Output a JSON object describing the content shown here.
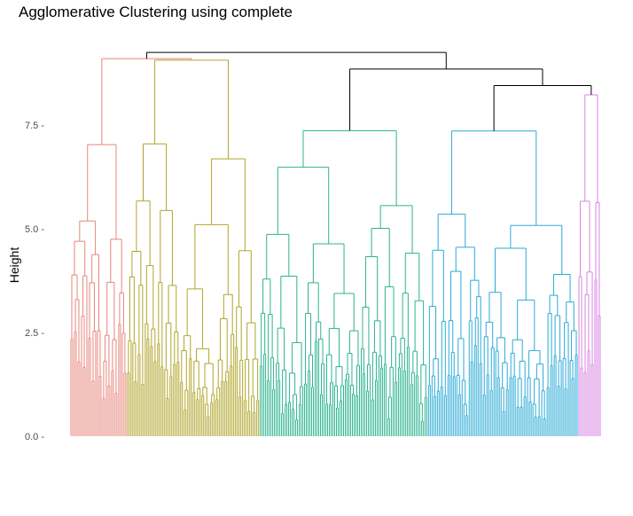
{
  "chart_data": {
    "type": "dendrogram",
    "title": "Agglomerative Clustering using complete",
    "xlabel": "",
    "ylabel": "Height",
    "ylim": [
      0,
      9.2
    ],
    "yticks": [
      0.0,
      2.5,
      5.0,
      7.5
    ],
    "ytick_labels": [
      "0.0 -",
      "2.5 -",
      "5.0 -",
      "7.5 -"
    ],
    "grid": false,
    "legend": "none",
    "leaf_count": 300,
    "top_merges": [
      {
        "name": "root",
        "height": 9.25,
        "color": "#000000"
      },
      {
        "name": "right-group",
        "height": 8.85,
        "color": "#000000"
      },
      {
        "name": "cyan-magenta",
        "height": 8.45,
        "color": "#000000"
      }
    ],
    "clusters": [
      {
        "name": "cluster-1",
        "color": "#E7857B",
        "leaves": 32,
        "merge_height": 7.35,
        "sub_heights": [
          6.8,
          6.1,
          5.5,
          4.9,
          6.3,
          4.3,
          4.1,
          3.8
        ]
      },
      {
        "name": "cluster-2",
        "color": "#B0A42A",
        "leaves": 75,
        "merge_height": 9.1,
        "sub_heights": [
          8.3,
          7.35,
          6.5,
          5.75,
          5.2,
          6.6,
          5.6,
          6.1,
          4.6,
          4.25,
          3.6
        ]
      },
      {
        "name": "cluster-3",
        "color": "#2DB38F",
        "leaves": 95,
        "merge_height": 7.4,
        "sub_heights": [
          6.85,
          6.35,
          5.9,
          5.6,
          6.5,
          5.1,
          4.9,
          4.6,
          4.2,
          4.0,
          3.6
        ]
      },
      {
        "name": "cluster-4",
        "color": "#2BAAD6",
        "leaves": 85,
        "merge_height": 7.6,
        "sub_heights": [
          6.5,
          6.0,
          5.6,
          5.25,
          6.5,
          4.8,
          4.4,
          4.2,
          3.9,
          3.6
        ]
      },
      {
        "name": "cluster-5",
        "color": "#D683E1",
        "leaves": 13,
        "merge_height": 8.45,
        "sub_heights": [
          6.1,
          4.0,
          3.5,
          2.8,
          1.8
        ]
      }
    ]
  }
}
